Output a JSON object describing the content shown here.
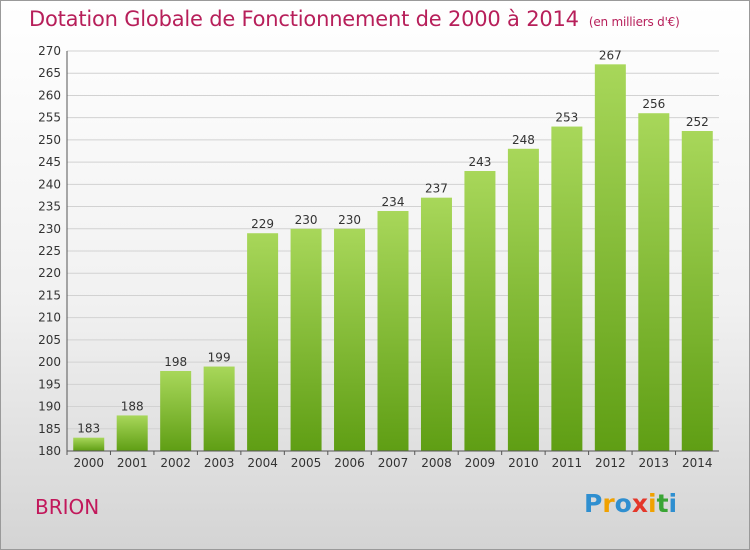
{
  "header": {
    "title": "Dotation Globale de Fonctionnement de 2000 à 2014",
    "unit": "(en milliers d'€)"
  },
  "footer": {
    "commune": "BRION",
    "logo_letters": [
      "P",
      "r",
      "o",
      "x",
      "i",
      "t",
      "i"
    ],
    "logo_colors": [
      "#2f8fd0",
      "#f0a100",
      "#2f8fd0",
      "#e4372a",
      "#f0a100",
      "#3aa535",
      "#2f8fd0"
    ]
  },
  "colors": {
    "bar_light": "#a8d75a",
    "bar_dark": "#5f9e14",
    "title": "#b71f5a"
  },
  "chart_data": {
    "type": "bar",
    "title": "Dotation Globale de Fonctionnement de 2000 à 2014",
    "subtitle": "(en milliers d'€)",
    "categories": [
      "2000",
      "2001",
      "2002",
      "2003",
      "2004",
      "2005",
      "2006",
      "2007",
      "2008",
      "2009",
      "2010",
      "2011",
      "2012",
      "2013",
      "2014"
    ],
    "values": [
      183,
      188,
      198,
      199,
      229,
      230,
      230,
      234,
      237,
      243,
      248,
      253,
      267,
      256,
      252
    ],
    "ylim": [
      180,
      270
    ],
    "yticks": [
      180,
      185,
      190,
      195,
      200,
      205,
      210,
      215,
      220,
      225,
      230,
      235,
      240,
      245,
      250,
      255,
      260,
      265,
      270
    ],
    "grid": true,
    "xlabel": "",
    "ylabel": ""
  }
}
